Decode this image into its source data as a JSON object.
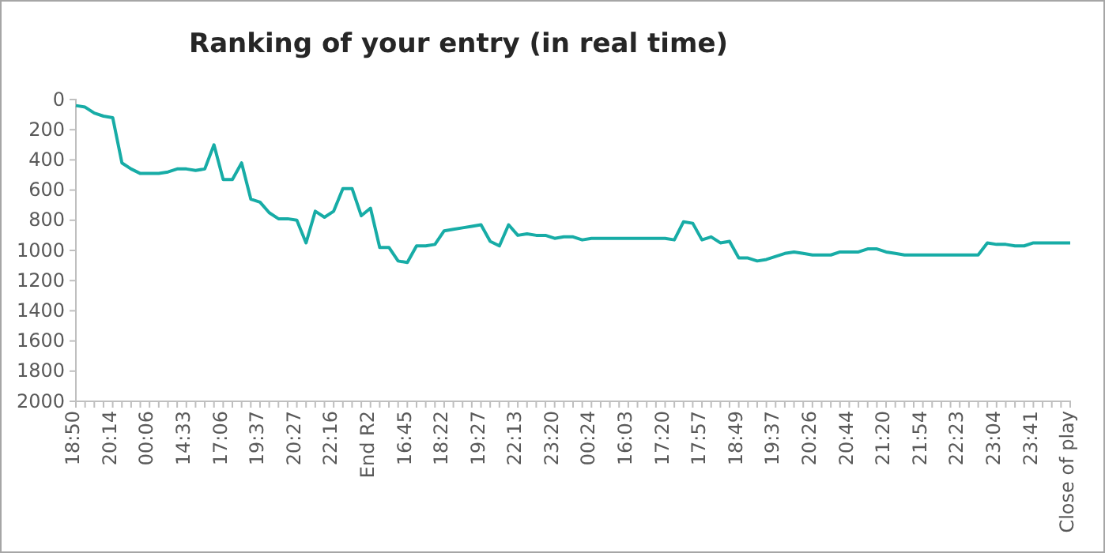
{
  "chart_data": {
    "type": "line",
    "title": "Ranking of your entry (in real time)",
    "categories": [
      "18:50",
      null,
      null,
      null,
      "20:14",
      null,
      null,
      null,
      "00:06",
      null,
      null,
      null,
      "14:33",
      null,
      null,
      null,
      "17:06",
      null,
      null,
      null,
      "19:37",
      null,
      null,
      null,
      "20:27",
      null,
      null,
      null,
      "22:16",
      null,
      null,
      null,
      "End R2",
      null,
      null,
      null,
      "16:45",
      null,
      null,
      null,
      "18:22",
      null,
      null,
      null,
      "19:27",
      null,
      null,
      null,
      "22:13",
      null,
      null,
      null,
      "23:20",
      null,
      null,
      null,
      "00:24",
      null,
      null,
      null,
      "16:03",
      null,
      null,
      null,
      "17:20",
      null,
      null,
      null,
      "17:57",
      null,
      null,
      null,
      "18:49",
      null,
      null,
      null,
      "19:37",
      null,
      null,
      null,
      "20:26",
      null,
      null,
      null,
      "20:44",
      null,
      null,
      null,
      "21:20",
      null,
      null,
      null,
      "21:54",
      null,
      null,
      null,
      "22:23",
      null,
      null,
      null,
      "23:04",
      null,
      null,
      null,
      "23:41",
      null,
      null,
      null,
      "Close of play"
    ],
    "series": [
      {
        "color": "#17aca6",
        "values": [
          40,
          50,
          90,
          110,
          120,
          420,
          460,
          490,
          490,
          490,
          480,
          460,
          460,
          470,
          460,
          300,
          530,
          530,
          420,
          660,
          680,
          750,
          790,
          790,
          800,
          950,
          740,
          780,
          740,
          590,
          590,
          770,
          720,
          980,
          980,
          1070,
          1080,
          970,
          970,
          960,
          870,
          860,
          850,
          840,
          830,
          940,
          970,
          830,
          900,
          890,
          900,
          900,
          920,
          910,
          910,
          930,
          920,
          920,
          920,
          920,
          920,
          920,
          920,
          920,
          920,
          930,
          810,
          820,
          930,
          910,
          950,
          940,
          1050,
          1050,
          1070,
          1060,
          1040,
          1020,
          1010,
          1020,
          1030,
          1030,
          1030,
          1010,
          1010,
          1010,
          990,
          990,
          1010,
          1020,
          1030,
          1030,
          1030,
          1030,
          1030,
          1030,
          1030,
          1030,
          1030,
          950,
          960,
          960,
          970,
          970,
          950,
          950,
          950,
          950,
          950
        ]
      }
    ],
    "ylim": [
      2000,
      0
    ],
    "yticks": [
      0,
      200,
      400,
      600,
      800,
      1000,
      1200,
      1400,
      1600,
      1800,
      2000
    ],
    "grid": false,
    "marker": "none",
    "line_style": "solid"
  }
}
